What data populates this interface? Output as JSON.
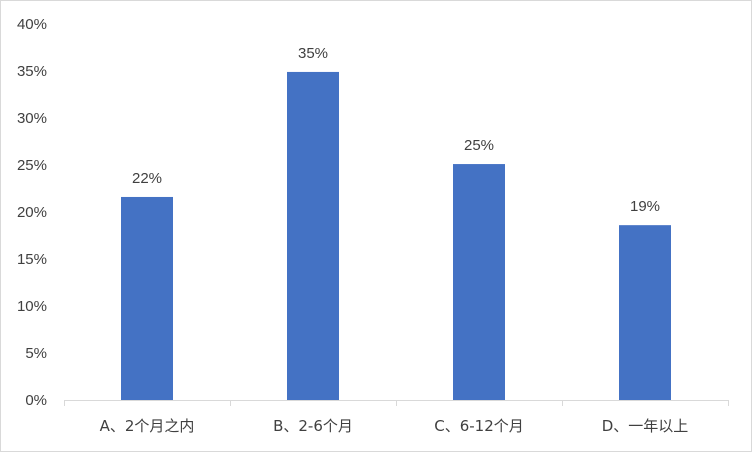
{
  "colors": {
    "bar": "#4472c4",
    "axis": "#d9d9d9",
    "text": "#404040",
    "border": "#d9d9d9"
  },
  "chart_data": {
    "type": "bar",
    "categories": [
      "A、2个月之内",
      "B、2-6个月",
      "C、6-12个月",
      "D、一年以上"
    ],
    "values": [
      21.6,
      34.9,
      25.1,
      18.6
    ],
    "data_labels": [
      "22%",
      "35%",
      "25%",
      "19%"
    ],
    "ylim": [
      0,
      40
    ],
    "ytick_values": [
      0,
      5,
      10,
      15,
      20,
      25,
      30,
      35,
      40
    ],
    "ytick_labels": [
      "0%",
      "5%",
      "10%",
      "15%",
      "20%",
      "25%",
      "30%",
      "35%",
      "40%"
    ],
    "grid": false,
    "legend": "none",
    "title": "",
    "xlabel": "",
    "ylabel": ""
  }
}
